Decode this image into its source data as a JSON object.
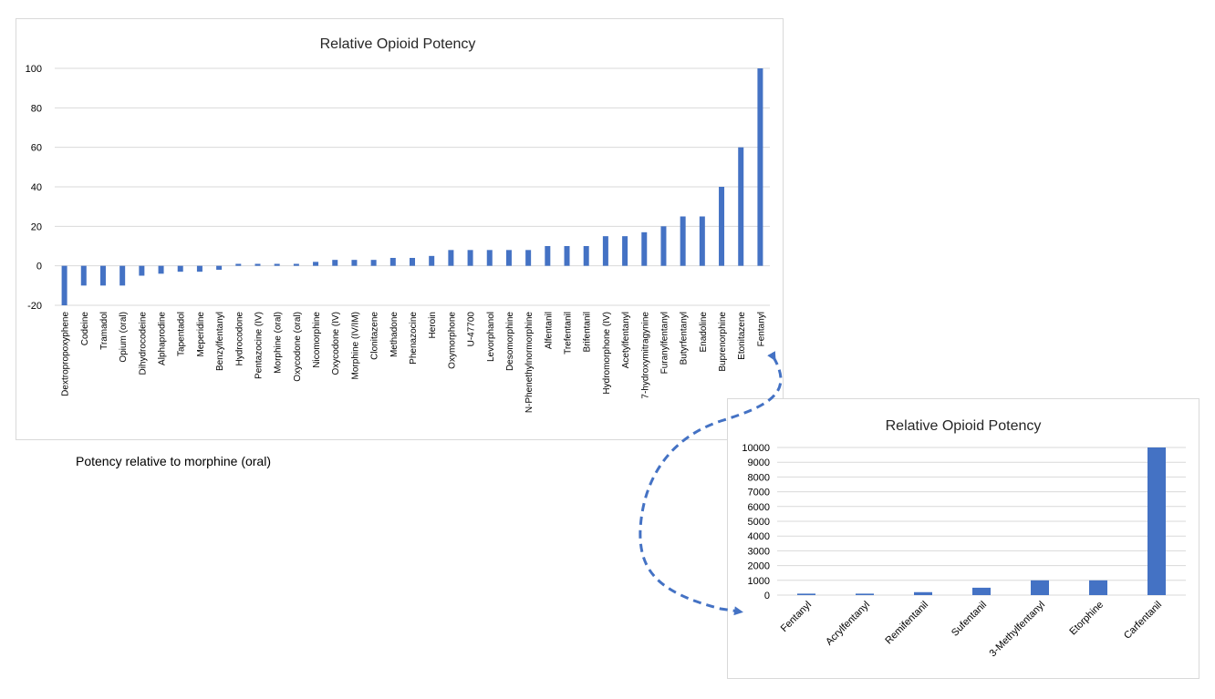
{
  "note": "Potency relative to morphine (oral)",
  "colors": {
    "bar": "#4472c4",
    "grid": "#d9d9d9",
    "axis_text": "#404040",
    "arrow": "#4472c4"
  },
  "chart_data": [
    {
      "type": "bar",
      "title": "Relative Opioid Potency",
      "xlabel": "",
      "ylabel": "",
      "ylim": [
        -20,
        100
      ],
      "yticks": [
        -20,
        0,
        20,
        40,
        60,
        80,
        100
      ],
      "grid": true,
      "categories": [
        "Dextropropoxyphene",
        "Codeine",
        "Tramadol",
        "Opium (oral)",
        "Dihydrocodeine",
        "Alphaprodine",
        "Tapentadol",
        "Meperidine",
        "Benzylfentanyl",
        "Hydrocodone",
        "Pentazocine (IV)",
        "Morphine (oral)",
        "Oxycodone (oral)",
        "Nicomorphine",
        "Oxycodone (IV)",
        "Morphine (IV/IM)",
        "Clonitazene",
        "Methadone",
        "Phenazocine",
        "Heroin",
        "Oxymorphone",
        "U-47700",
        "Levorphanol",
        "Desomorphine",
        "N-Phenethylnormorphine",
        "Alfentanil",
        "Trefentanil",
        "Brifentanil",
        "Hydromorphone (IV)",
        "Acetylfentanyl",
        "7-hydroxymitragynine",
        "Furanylfentanyl",
        "Butyrfentanyl",
        "Enadoline",
        "Buprenorphine",
        "Etonitazene",
        "Fentanyl"
      ],
      "values": [
        -20,
        -10,
        -10,
        -10,
        -5,
        -4,
        -3,
        -3,
        -2,
        1,
        1,
        1,
        1,
        2,
        3,
        3,
        3,
        4,
        4,
        5,
        8,
        8,
        8,
        8,
        8,
        10,
        10,
        10,
        15,
        15,
        17,
        20,
        25,
        25,
        40,
        60,
        100
      ]
    },
    {
      "type": "bar",
      "title": "Relative Opioid Potency",
      "xlabel": "",
      "ylabel": "",
      "ylim": [
        0,
        10000
      ],
      "yticks": [
        0,
        1000,
        2000,
        3000,
        4000,
        5000,
        6000,
        7000,
        8000,
        9000,
        10000
      ],
      "grid": true,
      "categories": [
        "Fentanyl",
        "Acrylfentanyl",
        "Remifentanil",
        "Sufentanil",
        "3-Methylfentanyl",
        "Etorphine",
        "Carfentanil"
      ],
      "values": [
        100,
        100,
        200,
        500,
        1000,
        1000,
        10000
      ]
    }
  ]
}
